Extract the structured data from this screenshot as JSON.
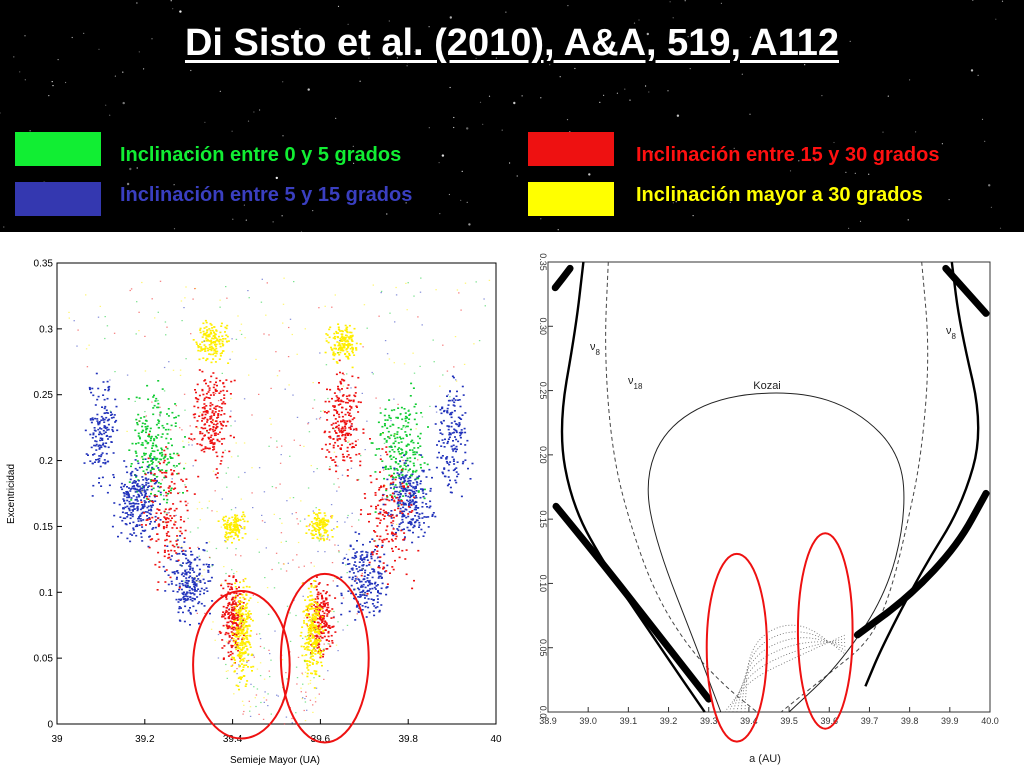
{
  "title": "Di Sisto et al. (2010), A&A, 519, A112",
  "legend": [
    {
      "label": "Inclinación entre 0 y 5 grados",
      "color": "#11ee33",
      "text_color": "#11ee33"
    },
    {
      "label": "Inclinación entre 5 y 15 grados",
      "color": "#3438b0",
      "text_color": "#3a3fc0"
    },
    {
      "label": "Inclinación entre 15 y 30 grados",
      "color": "#ee1111",
      "text_color": "#ff1010"
    },
    {
      "label": "Inclinación mayor a 30 grados",
      "color": "#ffff00",
      "text_color": "#ffff00"
    }
  ],
  "chart_data": [
    {
      "type": "scatter",
      "xlabel": "Semieje Mayor (UA)",
      "ylabel": "Excentricidad",
      "xlim": [
        39.0,
        40.0
      ],
      "ylim": [
        0,
        0.35
      ],
      "x_ticks": [
        "39",
        "39.2",
        "39.4",
        "39.6",
        "39.8",
        "40"
      ],
      "y_ticks": [
        "0",
        "0.05",
        "0.1",
        "0.15",
        "0.2",
        "0.25",
        "0.3",
        "0.35"
      ],
      "series_colors": [
        "#11cc33",
        "#2233bb",
        "#ee1111",
        "#ffee00"
      ],
      "highlight_ellipses": [
        {
          "x_center": 39.42,
          "e_center": 0.045,
          "x_halfwidth": 0.11,
          "e_halfheight": 0.056
        },
        {
          "x_center": 39.61,
          "e_center": 0.05,
          "x_halfwidth": 0.1,
          "e_halfheight": 0.064
        }
      ]
    },
    {
      "type": "line",
      "xlabel": "a (AU)",
      "xlim": [
        38.9,
        40.0
      ],
      "ylim": [
        0,
        0.35
      ],
      "x_ticks": [
        "38.9",
        "39.0",
        "39.1",
        "39.2",
        "39.3",
        "39.4",
        "39.5",
        "39.6",
        "39.7",
        "39.8",
        "39.9",
        "40.0"
      ],
      "y_ticks": [
        "0.0",
        "0.05",
        "0.10",
        "0.15",
        "0.20",
        "0.25",
        "0.30",
        "0.35"
      ],
      "curve_labels": {
        "nu8": "ν",
        "nu8_sub": "8",
        "nu18": "ν",
        "nu18_sub": "18",
        "kozai": "Kozai"
      },
      "curves": {
        "nu8_left": [
          [
            38.988,
            0.35
          ],
          [
            38.97,
            0.3
          ],
          [
            38.925,
            0.22
          ],
          [
            38.96,
            0.16
          ],
          [
            39.05,
            0.11
          ],
          [
            39.18,
            0.05
          ],
          [
            39.29,
            0.0
          ]
        ],
        "nu8_right": [
          [
            39.905,
            0.35
          ],
          [
            39.925,
            0.3
          ],
          [
            39.985,
            0.22
          ],
          [
            39.93,
            0.16
          ],
          [
            39.83,
            0.11
          ],
          [
            39.73,
            0.05
          ],
          [
            39.69,
            0.02
          ]
        ],
        "nu18_left": [
          [
            39.05,
            0.35
          ],
          [
            39.04,
            0.28
          ],
          [
            39.06,
            0.2
          ],
          [
            39.11,
            0.14
          ],
          [
            39.17,
            0.09
          ],
          [
            39.25,
            0.05
          ],
          [
            39.34,
            0.02
          ],
          [
            39.42,
            0.0
          ]
        ],
        "nu18_right": [
          [
            39.83,
            0.35
          ],
          [
            39.85,
            0.28
          ],
          [
            39.83,
            0.2
          ],
          [
            39.79,
            0.14
          ],
          [
            39.75,
            0.09
          ],
          [
            39.7,
            0.055
          ],
          [
            39.6,
            0.03
          ],
          [
            39.48,
            0.0
          ]
        ],
        "kozai": [
          [
            39.33,
            0.0
          ],
          [
            39.27,
            0.05
          ],
          [
            39.17,
            0.13
          ],
          [
            39.14,
            0.18
          ],
          [
            39.19,
            0.22
          ],
          [
            39.32,
            0.245
          ],
          [
            39.52,
            0.25
          ],
          [
            39.67,
            0.235
          ],
          [
            39.78,
            0.2
          ],
          [
            39.79,
            0.15
          ],
          [
            39.74,
            0.09
          ],
          [
            39.62,
            0.035
          ],
          [
            39.5,
            0.0
          ]
        ],
        "stable_left_upper": [
          [
            38.955,
            0.345
          ],
          [
            38.918,
            0.33
          ]
        ],
        "stable_left_lower": [
          [
            38.92,
            0.16
          ],
          [
            39.05,
            0.11
          ],
          [
            39.2,
            0.05
          ],
          [
            39.3,
            0.01
          ]
        ],
        "stable_right_upper": [
          [
            39.89,
            0.345
          ],
          [
            39.99,
            0.31
          ]
        ],
        "stable_right_lower": [
          [
            39.99,
            0.17
          ],
          [
            39.92,
            0.13
          ],
          [
            39.8,
            0.09
          ],
          [
            39.67,
            0.06
          ]
        ]
      },
      "highlight_ellipses": [
        {
          "x_center": 39.37,
          "e_center": 0.05,
          "x_halfwidth": 0.075,
          "e_halfheight": 0.073
        },
        {
          "x_center": 39.59,
          "e_center": 0.063,
          "x_halfwidth": 0.068,
          "e_halfheight": 0.076
        }
      ]
    }
  ]
}
